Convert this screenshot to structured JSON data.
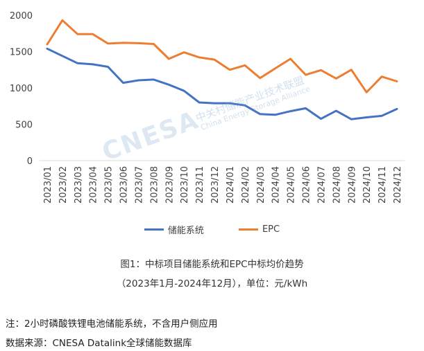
{
  "chart_data": {
    "type": "line",
    "categories": [
      "2023/01",
      "2023/02",
      "2023/03",
      "2023/04",
      "2023/05",
      "2023/06",
      "2023/07",
      "2023/08",
      "2023/09",
      "2023/10",
      "2023/11",
      "2023/12",
      "2024/01",
      "2024/02",
      "2024/03",
      "2024/04",
      "2024/05",
      "2024/06",
      "2024/07",
      "2024/08",
      "2024/09",
      "2024/10",
      "2024/11",
      "2024/12"
    ],
    "series": [
      {
        "name": "储能系统",
        "color": "#4472c4",
        "values": [
          1540,
          1440,
          1340,
          1325,
          1290,
          1070,
          1105,
          1115,
          1045,
          960,
          800,
          790,
          790,
          760,
          640,
          630,
          680,
          720,
          575,
          685,
          570,
          595,
          615,
          710
        ]
      },
      {
        "name": "EPC",
        "color": "#ed7d31",
        "values": [
          1600,
          1930,
          1740,
          1740,
          1610,
          1620,
          1615,
          1605,
          1400,
          1490,
          1420,
          1390,
          1250,
          1310,
          1135,
          1270,
          1400,
          1180,
          1245,
          1130,
          1250,
          940,
          1155,
          1090
        ]
      }
    ],
    "ylim": [
      0,
      2000
    ],
    "yticks": [
      0,
      500,
      1000,
      1500,
      2000
    ],
    "grid": false,
    "legend_position": "bottom",
    "title": "图1：中标项目储能系统和EPC中标均价趋势",
    "subtitle": "（2023年1月-2024年12月），单位：元/kWh"
  },
  "notes": {
    "note": "注：2小时磷酸铁锂电池储能系统，不含用户侧应用",
    "source": "数据来源：CNESA Datalink全球储能数据库"
  },
  "watermark": {
    "logo": "CNESA",
    "cn": "中关村储能产业技术联盟",
    "en": "China Energy Storage Alliance"
  }
}
